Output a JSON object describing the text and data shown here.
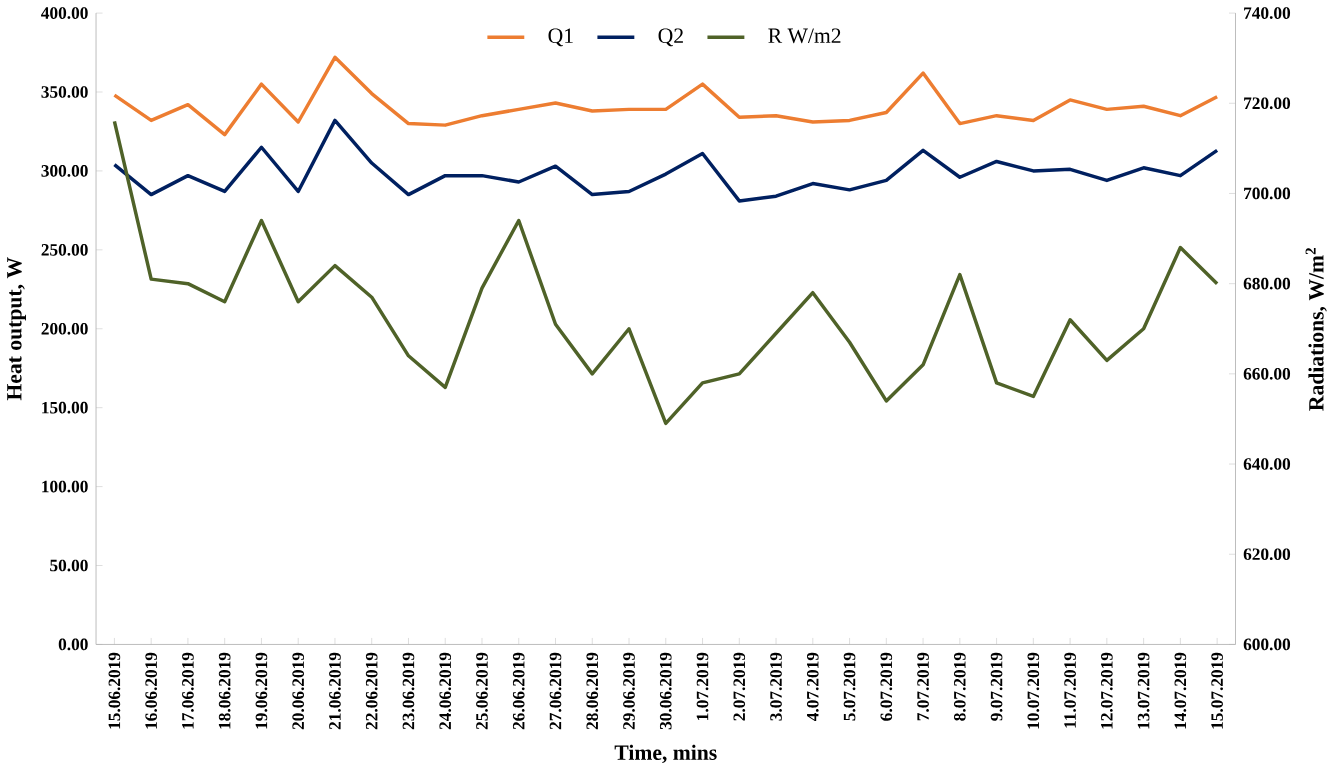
{
  "chart_data": {
    "type": "line",
    "xlabel": "Time, mins",
    "ylabel": "Heat output, W",
    "y2label": "Radiations, W/m$^{2}$",
    "categories": [
      "15.06.2019",
      "16.06.2019",
      "17.06.2019",
      "18.06.2019",
      "19.06.2019",
      "20.06.2019",
      "21.06.2019",
      "22.06.2019",
      "23.06.2019",
      "24.06.2019",
      "25.06.2019",
      "26.06.2019",
      "27.06.2019",
      "28.06.2019",
      "29.06.2019",
      "30.06.2019",
      "1.07.2019",
      "2.07.2019",
      "3.07.2019",
      "4.07.2019",
      "5.07.2019",
      "6.07.2019",
      "7.07.2019",
      "8.07.2019",
      "9.07.2019",
      "10.07.2019",
      "11.07.2019",
      "12.07.2019",
      "13.07.2019",
      "14.07.2019",
      "15.07.2019"
    ],
    "series": [
      {
        "name": "Q1",
        "color": "#ed7d31",
        "values": [
          348,
          332,
          342,
          323,
          355,
          331,
          372,
          349,
          330,
          329,
          335,
          339,
          343,
          338,
          339,
          339,
          355,
          334,
          335,
          331,
          332,
          337,
          362,
          330,
          335,
          332,
          345,
          339,
          341,
          335,
          347
        ]
      },
      {
        "name": "Q2",
        "color": "#002060",
        "values": [
          304,
          285,
          297,
          287,
          315,
          287,
          332,
          305,
          285,
          297,
          297,
          293,
          303,
          285,
          287,
          298,
          311,
          281,
          284,
          292,
          288,
          294,
          313,
          296,
          306,
          300,
          301,
          294,
          302,
          297,
          313
        ]
      },
      {
        "name": "R W/m2",
        "color": "#4f6228",
        "axis": "y2",
        "values": [
          716,
          681,
          680,
          676,
          694,
          676,
          684,
          677,
          664,
          657,
          679,
          694,
          671,
          660,
          670,
          649,
          658,
          660,
          669,
          678,
          667,
          654,
          662,
          682,
          658,
          655,
          672,
          663,
          670,
          688,
          680
        ]
      }
    ],
    "ylim": [
      0,
      400
    ],
    "yticks": [
      {
        "value": 0,
        "label": "0.00"
      },
      {
        "value": 50,
        "label": "50.00"
      },
      {
        "value": 100,
        "label": "100.00"
      },
      {
        "value": 150,
        "label": "150.00"
      },
      {
        "value": 200,
        "label": "200.00"
      },
      {
        "value": 250,
        "label": "250.00"
      },
      {
        "value": 300,
        "label": "300.00"
      },
      {
        "value": 350,
        "label": "350.00"
      },
      {
        "value": 400,
        "label": "400.00"
      }
    ],
    "y2lim": [
      600,
      740
    ],
    "y2ticks": [
      {
        "value": 600,
        "label": "600.00"
      },
      {
        "value": 620,
        "label": "620.00"
      },
      {
        "value": 640,
        "label": "640.00"
      },
      {
        "value": 660,
        "label": "660.00"
      },
      {
        "value": 680,
        "label": "680.00"
      },
      {
        "value": 700,
        "label": "700.00"
      },
      {
        "value": 720,
        "label": "720.00"
      },
      {
        "value": 740,
        "label": "740.00"
      }
    ],
    "legend": "top",
    "grid": false,
    "marker": "none",
    "line_style": "solid"
  }
}
